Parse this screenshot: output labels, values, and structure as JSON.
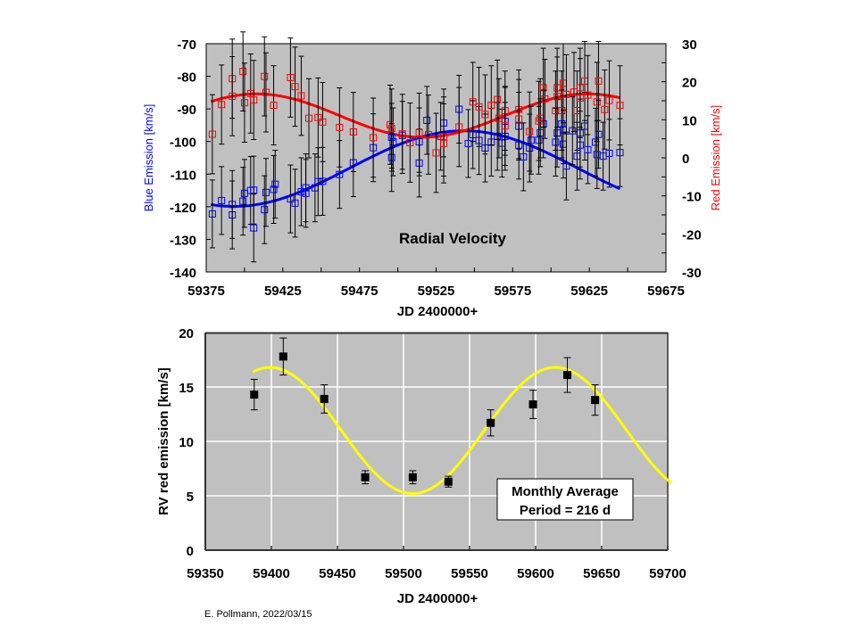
{
  "credit": "E. Pollmann, 2022/03/15",
  "colors": {
    "plot_bg": "#c0c0c0",
    "blue": "#0000ff",
    "red": "#ff0000",
    "fit_yellow": "#ffff00",
    "grid": "#ffffff",
    "marker": "#000000"
  },
  "chart_data": [
    {
      "type": "scatter",
      "title": "Radial Velocity",
      "xlabel": "JD 2400000+",
      "ylabel": "Blue Emission [km/s]",
      "ylabel_right": "Red Emission [km/s]",
      "xlim": [
        59375,
        59675
      ],
      "ylim": [
        -140,
        -70
      ],
      "ylim_right": [
        -30,
        30
      ],
      "xticks": [
        59375,
        59425,
        59475,
        59525,
        59575,
        59625,
        59675
      ],
      "xticks_minor_step": 25,
      "yticks": [
        -70,
        -80,
        -90,
        -100,
        -110,
        -120,
        -130,
        -140
      ],
      "yticks_right": [
        30,
        20,
        10,
        0,
        -10,
        -20,
        -30
      ],
      "grid": false,
      "series": [
        {
          "name": "Blue Emission",
          "axis": "left",
          "marker": "open-square",
          "error": 4,
          "points": [
            [
              59379,
              -122.2
            ],
            [
              59385,
              -118.1
            ],
            [
              59392,
              -122.5
            ],
            [
              59392,
              -119.3
            ],
            [
              59399,
              -118.3
            ],
            [
              59400,
              -115.9
            ],
            [
              59404,
              -115.0
            ],
            [
              59406,
              -114.9
            ],
            [
              59406,
              -126.5
            ],
            [
              59413,
              -120.9
            ],
            [
              59414,
              -115.6
            ],
            [
              59419,
              -114.7
            ],
            [
              59420,
              -113.1
            ],
            [
              59430,
              -117.6
            ],
            [
              59433,
              -118.9
            ],
            [
              59437,
              -115.4
            ],
            [
              59440,
              -115.9
            ],
            [
              59440,
              -114.2
            ],
            [
              59446,
              -114.2
            ],
            [
              59448,
              -112.3
            ],
            [
              59451,
              -112.2
            ],
            [
              59462,
              -110.1
            ],
            [
              59471,
              -106.5
            ],
            [
              59484,
              -101.9
            ],
            [
              59496,
              -104.9
            ],
            [
              59496,
              -98.7
            ],
            [
              59497,
              -100.1
            ],
            [
              59503,
              -98.1
            ],
            [
              59514,
              -100.1
            ],
            [
              59514,
              -106.6
            ],
            [
              59519,
              -93.5
            ],
            [
              59530,
              -94.3
            ],
            [
              59528,
              -98.4
            ],
            [
              59540,
              -90.1
            ],
            [
              59546,
              -100.6
            ],
            [
              59549,
              -97.9
            ],
            [
              59553,
              -99.7
            ],
            [
              59557,
              -102.0
            ],
            [
              59561,
              -100.2
            ],
            [
              59565,
              -98.4
            ],
            [
              59568,
              -100.5
            ],
            [
              59570,
              -93.8
            ],
            [
              59570,
              -98.4
            ],
            [
              59579,
              -95.3
            ],
            [
              59579,
              -101.1
            ],
            [
              59582,
              -104.7
            ],
            [
              59586,
              -102.0
            ],
            [
              59587,
              -99.6
            ],
            [
              59592,
              -99.6
            ],
            [
              59593,
              -97.3
            ],
            [
              59595,
              -94.6
            ],
            [
              59603,
              -100.2
            ],
            [
              59604,
              -97.4
            ],
            [
              59607,
              -94.6
            ],
            [
              59608,
              -100.8
            ],
            [
              59608,
              -96.4
            ],
            [
              59610,
              -107.5
            ],
            [
              59614,
              -96.7
            ],
            [
              59617,
              -104.5
            ],
            [
              59619,
              -97.4
            ],
            [
              59619,
              -101.1
            ],
            [
              59622,
              -95.3
            ],
            [
              59624,
              -102.5
            ],
            [
              59629,
              -100.2
            ],
            [
              59631,
              -97.8
            ],
            [
              59630,
              -104.0
            ],
            [
              59634,
              -104.5
            ],
            [
              59638,
              -103.6
            ],
            [
              59645,
              -103.4
            ]
          ],
          "fit": {
            "kind": "sine",
            "mean": -108.3,
            "amplitude": 11.6,
            "period": 300,
            "peak_jd": 59543,
            "range": [
              59378,
              59645
            ]
          }
        },
        {
          "name": "Red Emission",
          "axis": "right",
          "marker": "open-square",
          "error": 4,
          "points": [
            [
              59379,
              6.2
            ],
            [
              59385,
              14.0
            ],
            [
              59392,
              20.8
            ],
            [
              59392,
              16.2
            ],
            [
              59399,
              22.7
            ],
            [
              59400,
              14.5
            ],
            [
              59404,
              16.9
            ],
            [
              59406,
              15.2
            ],
            [
              59413,
              21.4
            ],
            [
              59414,
              17.2
            ],
            [
              59419,
              13.8
            ],
            [
              59430,
              21.1
            ],
            [
              59433,
              18.7
            ],
            [
              59437,
              16.3
            ],
            [
              59442,
              10.4
            ],
            [
              59448,
              10.6
            ],
            [
              59451,
              9.4
            ],
            [
              59462,
              8.0
            ],
            [
              59471,
              6.8
            ],
            [
              59484,
              5.3
            ],
            [
              59495,
              8.7
            ],
            [
              59496,
              7.7
            ],
            [
              59503,
              6.3
            ],
            [
              59508,
              4.0
            ],
            [
              59514,
              6.6
            ],
            [
              59520,
              6.1
            ],
            [
              59525,
              1.3
            ],
            [
              59530,
              5.6
            ],
            [
              59530,
              3.8
            ],
            [
              59540,
              8.1
            ],
            [
              59549,
              14.7
            ],
            [
              59553,
              13.4
            ],
            [
              59557,
              11.4
            ],
            [
              59561,
              13.8
            ],
            [
              59565,
              15.3
            ],
            [
              59566,
              10.4
            ],
            [
              59570,
              12.4
            ],
            [
              59570,
              8.4
            ],
            [
              59579,
              12.7
            ],
            [
              59579,
              10.2
            ],
            [
              59586,
              6.9
            ],
            [
              59592,
              9.7
            ],
            [
              59593,
              10.4
            ],
            [
              59595,
              18.4
            ],
            [
              59596,
              15.5
            ],
            [
              59603,
              12.4
            ],
            [
              59604,
              18.4
            ],
            [
              59604,
              16.1
            ],
            [
              59607,
              12.4
            ],
            [
              59608,
              19.6
            ],
            [
              59610,
              16.7
            ],
            [
              59615,
              17.3
            ],
            [
              59617,
              12.4
            ],
            [
              59619,
              18.4
            ],
            [
              59619,
              15.7
            ],
            [
              59622,
              20.2
            ],
            [
              59624,
              16.5
            ],
            [
              59630,
              14.7
            ],
            [
              59631,
              20.2
            ],
            [
              59635,
              12.7
            ],
            [
              59638,
              15.1
            ],
            [
              59645,
              13.8
            ]
          ],
          "fit": {
            "kind": "sine",
            "mean": 11.1,
            "amplitude": 5.7,
            "period": 216,
            "peak_jd": 59408,
            "range": [
              59378,
              59645
            ]
          }
        }
      ]
    },
    {
      "type": "scatter",
      "title": "",
      "xlabel": "JD 2400000+",
      "ylabel": "RV red emission [km/s]",
      "xlim": [
        59350,
        59700
      ],
      "ylim": [
        0,
        20
      ],
      "xticks": [
        59350,
        59400,
        59450,
        59500,
        59550,
        59600,
        59650,
        59700
      ],
      "yticks": [
        0,
        5,
        10,
        15,
        20
      ],
      "grid": true,
      "annotation": [
        "Monthly Average",
        "Period = 216 d"
      ],
      "series": [
        {
          "name": "Monthly Average",
          "marker": "filled-square",
          "points": [
            {
              "x": 59387,
              "y": 14.3,
              "err": 1.4
            },
            {
              "x": 59409,
              "y": 17.8,
              "err": 1.7
            },
            {
              "x": 59440,
              "y": 13.9,
              "err": 1.3
            },
            {
              "x": 59471,
              "y": 6.7,
              "err": 0.6
            },
            {
              "x": 59507,
              "y": 6.7,
              "err": 0.6
            },
            {
              "x": 59534,
              "y": 6.3,
              "err": 0.5
            },
            {
              "x": 59566,
              "y": 11.7,
              "err": 1.2
            },
            {
              "x": 59598,
              "y": 13.4,
              "err": 1.3
            },
            {
              "x": 59624,
              "y": 16.1,
              "err": 1.6
            },
            {
              "x": 59645,
              "y": 13.8,
              "err": 1.4
            }
          ],
          "fit": {
            "kind": "sine",
            "mean": 11.0,
            "amplitude": 5.8,
            "period": 216,
            "peak_jd": 59615,
            "range": [
              59386,
              59703
            ]
          }
        }
      ]
    }
  ]
}
